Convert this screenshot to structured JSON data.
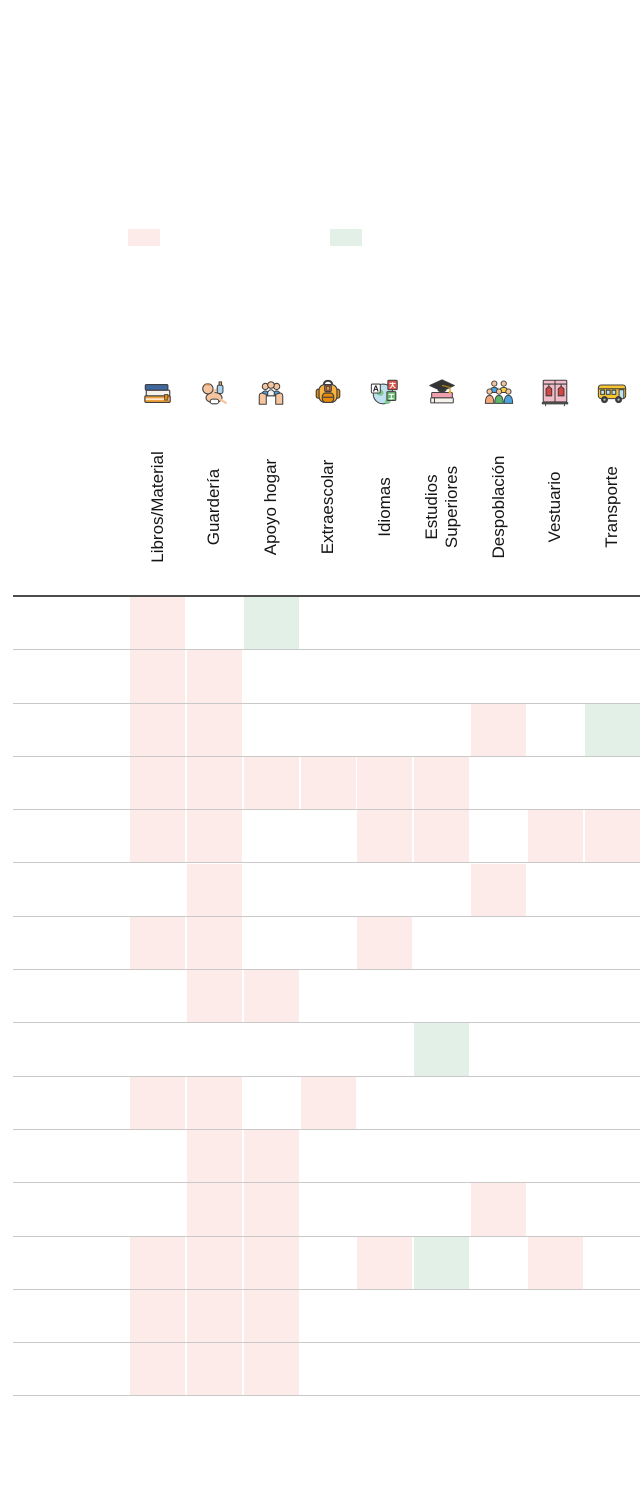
{
  "chart_data": {
    "type": "heatmap",
    "title": "",
    "legend_position": "top",
    "legend": [
      {
        "name": "pink",
        "color": "#fcebe8"
      },
      {
        "name": "green",
        "color": "#e3f0e7"
      }
    ],
    "cell_states": {
      "pink": "#fcebe8",
      "green": "#e3f0e7"
    },
    "columns": [
      {
        "label": "Libros/Material",
        "icon": "books-icon"
      },
      {
        "label": "Guardería",
        "icon": "baby-icon"
      },
      {
        "label": "Apoyo hogar",
        "icon": "family-in-hands-icon"
      },
      {
        "label": "Extraescolar",
        "icon": "backpack-icon"
      },
      {
        "label": "Idiomas",
        "icon": "translation-globe-icon"
      },
      {
        "label": "Estudios Superiores",
        "icon": "graduation-cap-books-icon"
      },
      {
        "label": "Despoblación",
        "icon": "people-group-icon"
      },
      {
        "label": "Vestuario",
        "icon": "clothes-lockers-icon"
      },
      {
        "label": "Transporte",
        "icon": "school-bus-icon"
      }
    ],
    "row_labels_visible": false,
    "rows": [
      {
        "cells": [
          "pink",
          "",
          "green",
          "",
          "",
          "",
          "",
          "",
          ""
        ]
      },
      {
        "cells": [
          "pink",
          "pink",
          "",
          "",
          "",
          "",
          "",
          "",
          ""
        ]
      },
      {
        "cells": [
          "pink",
          "pink",
          "",
          "",
          "",
          "",
          "pink",
          "",
          "green"
        ]
      },
      {
        "cells": [
          "pink",
          "pink",
          "pink",
          "pink",
          "pink",
          "pink",
          "",
          "",
          ""
        ]
      },
      {
        "cells": [
          "pink",
          "pink",
          "",
          "",
          "pink",
          "pink",
          "",
          "pink",
          "pink"
        ]
      },
      {
        "cells": [
          "",
          "pink",
          "",
          "",
          "",
          "",
          "pink",
          "",
          ""
        ]
      },
      {
        "cells": [
          "pink",
          "pink",
          "",
          "",
          "pink",
          "",
          "",
          "",
          ""
        ]
      },
      {
        "cells": [
          "",
          "pink",
          "pink",
          "",
          "",
          "",
          "",
          "",
          ""
        ]
      },
      {
        "cells": [
          "",
          "",
          "",
          "",
          "",
          "green",
          "",
          "",
          ""
        ]
      },
      {
        "cells": [
          "pink",
          "pink",
          "",
          "pink",
          "",
          "",
          "",
          "",
          ""
        ]
      },
      {
        "cells": [
          "",
          "pink",
          "pink",
          "",
          "",
          "",
          "",
          "",
          ""
        ]
      },
      {
        "cells": [
          "",
          "pink",
          "pink",
          "",
          "",
          "",
          "pink",
          "",
          ""
        ]
      },
      {
        "cells": [
          "pink",
          "pink",
          "pink",
          "",
          "pink",
          "green",
          "",
          "pink",
          ""
        ]
      },
      {
        "cells": [
          "pink",
          "pink",
          "pink",
          "",
          "",
          "",
          "",
          "",
          ""
        ]
      },
      {
        "cells": [
          "pink",
          "pink",
          "pink",
          "",
          "",
          "",
          "",
          "",
          ""
        ]
      }
    ],
    "grid": true
  },
  "styles": {
    "thick_line": "#4d4d4d",
    "thin_line": "#c9c9c9",
    "label_color": "#151515"
  }
}
